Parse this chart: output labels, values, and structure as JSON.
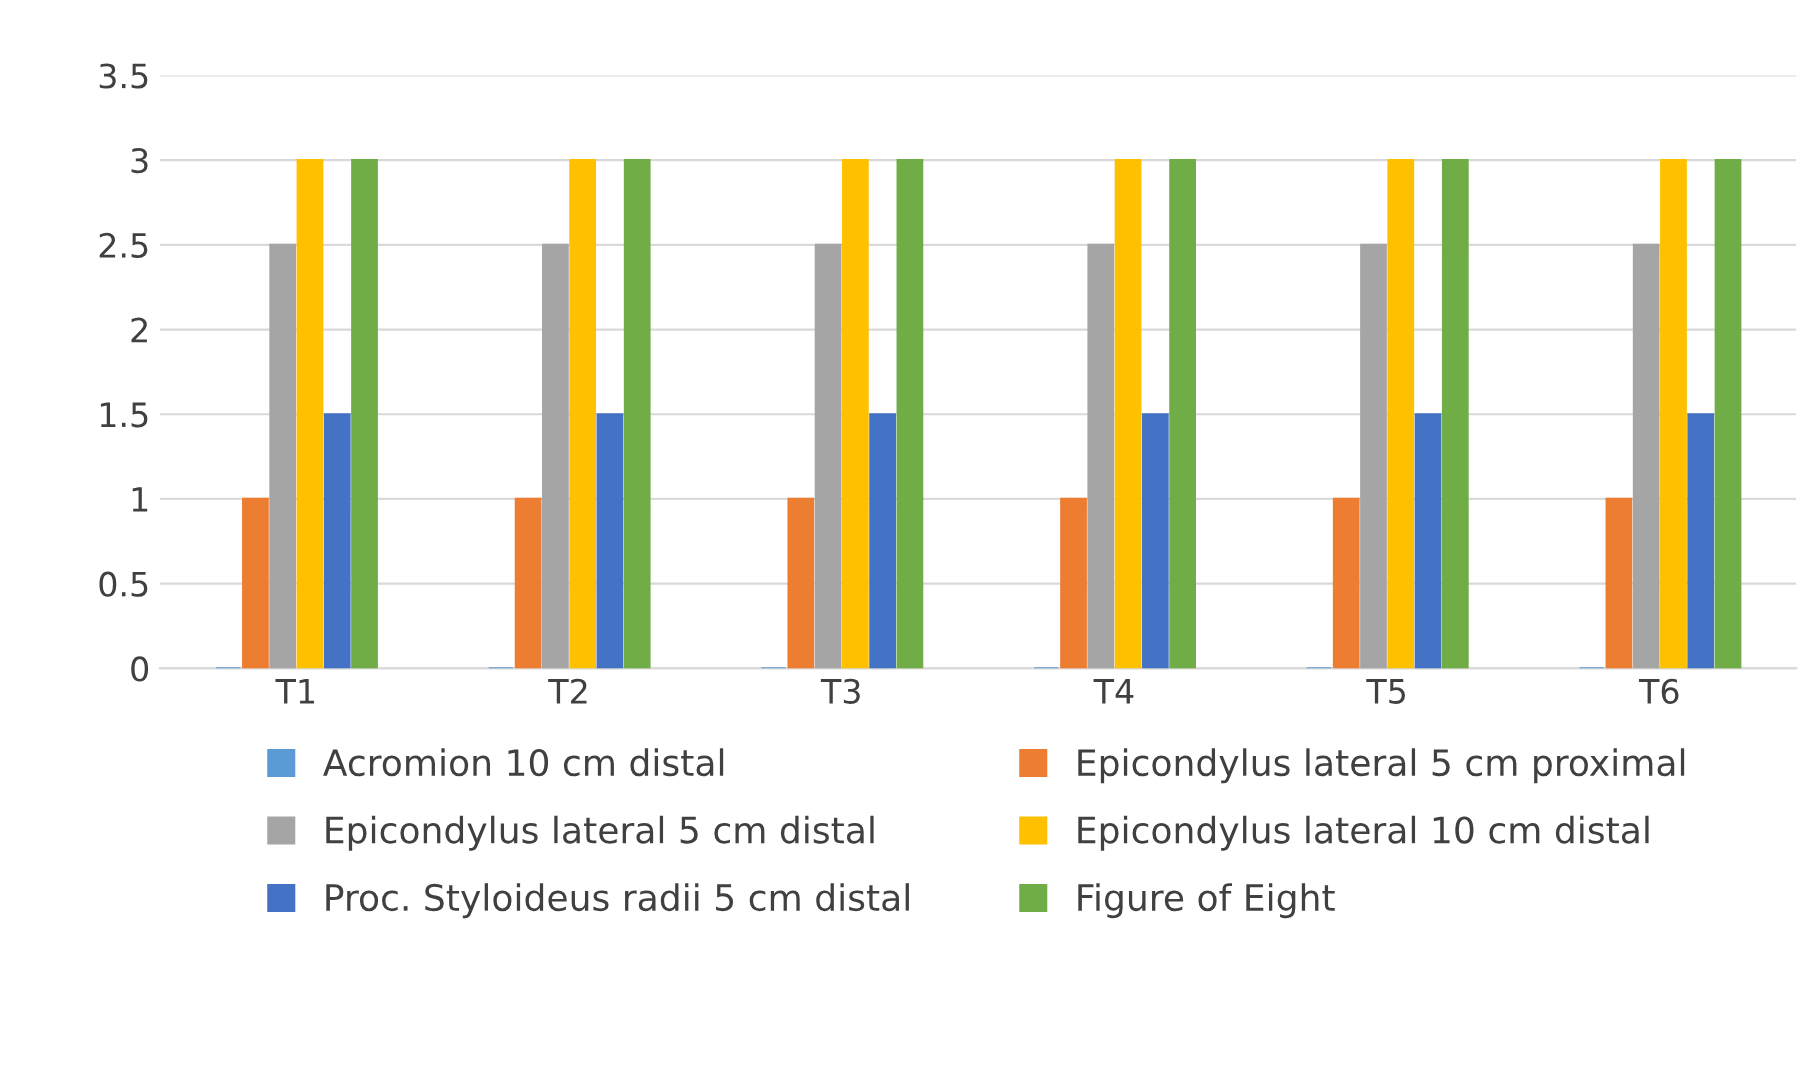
{
  "chart_data": {
    "type": "bar",
    "categories": [
      "T1",
      "T2",
      "T3",
      "T4",
      "T5",
      "T6"
    ],
    "series": [
      {
        "name": "Acromion 10 cm distal",
        "color": "#5b9bd5",
        "values": [
          0,
          0,
          0,
          0,
          0,
          0
        ]
      },
      {
        "name": "Epicondylus lateral 5 cm proximal",
        "color": "#ed7d31",
        "values": [
          1,
          1,
          1,
          1,
          1,
          1
        ]
      },
      {
        "name": "Epicondylus lateral 5 cm distal",
        "color": "#a5a5a5",
        "values": [
          2.5,
          2.5,
          2.5,
          2.5,
          2.5,
          2.5
        ]
      },
      {
        "name": "Epicondylus lateral 10 cm distal",
        "color": "#ffc000",
        "values": [
          3,
          3,
          3,
          3,
          3,
          3
        ]
      },
      {
        "name": "Proc. Styloideus radii 5 cm distal",
        "color": "#4472c4",
        "values": [
          1.5,
          1.5,
          1.5,
          1.5,
          1.5,
          1.5
        ]
      },
      {
        "name": "Figure of Eight",
        "color": "#70ad47",
        "values": [
          3,
          3,
          3,
          3,
          3,
          3
        ]
      }
    ],
    "ylim": [
      0,
      3.5
    ],
    "yticks": [
      0,
      0.5,
      1,
      1.5,
      2,
      2.5,
      3,
      3.5
    ],
    "grid": "y",
    "legend": "bottom"
  }
}
